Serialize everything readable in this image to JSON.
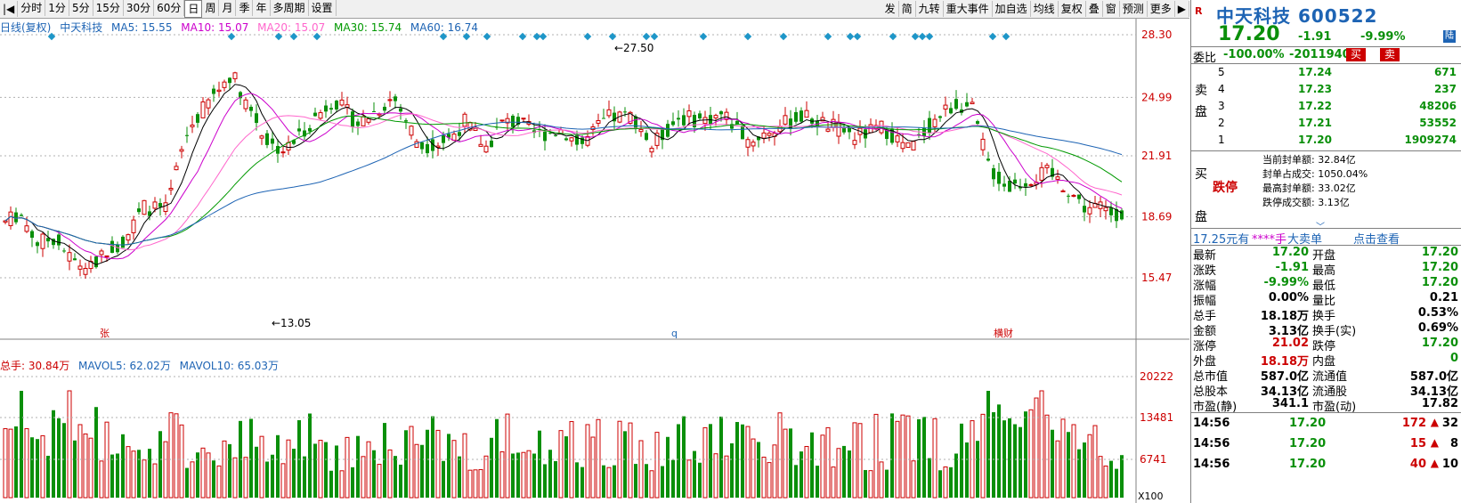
{
  "toolbar": {
    "periods": [
      "分时",
      "1分",
      "5分",
      "15分",
      "30分",
      "60分",
      "日",
      "周",
      "月",
      "季",
      "年",
      "多周期",
      "设置"
    ],
    "active_period": "日",
    "right_buttons": [
      "发",
      "简",
      "九转",
      "重大事件",
      "加自选",
      "均线",
      "复权",
      "叠",
      "窗",
      "预测",
      "更多"
    ]
  },
  "kline": {
    "legend": {
      "title": "日线(复权)",
      "name": "中天科技",
      "ma5": "MA5: 15.55",
      "ma10": "MA10: 15.07",
      "ma20": "MA20: 15.07",
      "ma30": "MA30: 15.74",
      "ma60": "MA60: 16.74"
    },
    "axis": [
      "28.30",
      "24.99",
      "21.91",
      "18.69",
      "15.47"
    ],
    "high_label": "27.50",
    "low_label": "13.05",
    "markers": [
      "张",
      "q",
      "横财"
    ]
  },
  "volume": {
    "legend": {
      "total": "总手: 30.84万",
      "mavol5": "MAVOL5: 62.02万",
      "mavol10": "MAVOL10: 65.03万"
    },
    "axis": [
      "20222",
      "13481",
      "6741"
    ],
    "unit": "X100"
  },
  "colors": {
    "up": "#cc0000",
    "down": "#0a8f0a",
    "ma5": "#000000",
    "ma10": "#cc00cc",
    "ma20": "#ff66cc",
    "ma30": "#009900",
    "ma60": "#1e64b4"
  },
  "panel": {
    "name": "中天科技",
    "code": "600522",
    "price": "17.20",
    "change": "-1.91",
    "change_pct": "-9.99%",
    "weibi_label": "委比",
    "weibi_value": "-100.00%",
    "weicha_value": "-2011940",
    "buy_btn": "买",
    "sell_btn": "卖",
    "sell_side": "卖盘",
    "buy_side": "买盘",
    "asks": [
      {
        "level": "5",
        "price": "17.24",
        "volume": "671"
      },
      {
        "level": "4",
        "price": "17.23",
        "volume": "237"
      },
      {
        "level": "3",
        "price": "17.22",
        "volume": "48206"
      },
      {
        "level": "2",
        "price": "17.21",
        "volume": "53552"
      },
      {
        "level": "1",
        "price": "17.20",
        "volume": "1909274"
      }
    ],
    "limit_down_label": "跌停",
    "seal_info": [
      "当前封单额: 32.84亿",
      "封单占成交: 1050.04%",
      "最高封单额: 33.02亿",
      "跌停成交额: 3.13亿"
    ],
    "ticker_bar": {
      "left": "17.25元有",
      "mid": "****手",
      "big": "大卖单",
      "link": "点击查看"
    },
    "stats": [
      {
        "l1": "最新",
        "v1": "17.20",
        "c1": "grn",
        "l2": "开盘",
        "v2": "17.20",
        "c2": "grn"
      },
      {
        "l1": "涨跌",
        "v1": "-1.91",
        "c1": "grn",
        "l2": "最高",
        "v2": "17.20",
        "c2": "grn"
      },
      {
        "l1": "涨幅",
        "v1": "-9.99%",
        "c1": "grn",
        "l2": "最低",
        "v2": "17.20",
        "c2": "grn"
      },
      {
        "l1": "振幅",
        "v1": "0.00%",
        "c1": "blk",
        "l2": "量比",
        "v2": "0.21",
        "c2": "blk"
      },
      {
        "l1": "总手",
        "v1": "18.18万",
        "c1": "blk",
        "l2": "换手",
        "v2": "0.53%",
        "c2": "blk"
      },
      {
        "l1": "金额",
        "v1": "3.13亿",
        "c1": "blk",
        "l2": "换手(实)",
        "v2": "0.69%",
        "c2": "blk"
      },
      {
        "l1": "涨停",
        "v1": "21.02",
        "c1": "red",
        "l2": "跌停",
        "v2": "17.20",
        "c2": "grn"
      },
      {
        "l1": "外盘",
        "v1": "18.18万",
        "c1": "red",
        "l2": "内盘",
        "v2": "0",
        "c2": "grn"
      },
      {
        "l1": "总市值",
        "v1": "587.0亿",
        "c1": "blk",
        "l2": "流通值",
        "v2": "587.0亿",
        "c2": "blk"
      },
      {
        "l1": "总股本",
        "v1": "34.13亿",
        "c1": "blk",
        "l2": "流通股",
        "v2": "34.13亿",
        "c2": "blk"
      },
      {
        "l1": "市盈(静)",
        "v1": "341.1",
        "c1": "blk",
        "l2": "市盈(动)",
        "v2": "17.82",
        "c2": "blk"
      }
    ],
    "trades": [
      {
        "time": "14:56",
        "price": "17.20",
        "vol": "172",
        "n": "32"
      },
      {
        "time": "14:56",
        "price": "17.20",
        "vol": "15",
        "n": "8"
      },
      {
        "time": "14:56",
        "price": "17.20",
        "vol": "40",
        "n": "10"
      }
    ]
  }
}
